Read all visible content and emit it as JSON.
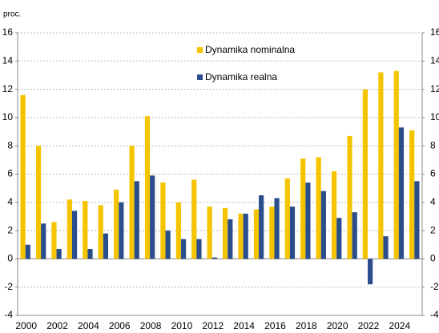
{
  "chart_data": {
    "type": "bar",
    "y_label": "proc.",
    "categories": [
      "2000",
      null,
      "2002",
      null,
      "2004",
      null,
      "2006",
      null,
      "2008",
      null,
      "2010",
      null,
      "2012",
      null,
      "2014",
      null,
      "2016",
      null,
      "2018",
      null,
      "2020",
      null,
      "2022",
      null,
      "2024",
      null
    ],
    "series": [
      {
        "name": "Dynamika nominalna",
        "color": "#f5c400",
        "values": [
          11.6,
          8.0,
          2.6,
          4.2,
          4.1,
          3.8,
          4.9,
          8.0,
          10.1,
          5.4,
          4.0,
          5.6,
          3.7,
          3.6,
          3.2,
          3.5,
          3.7,
          5.7,
          7.1,
          7.2,
          6.2,
          8.7,
          12.0,
          13.2,
          13.3,
          9.1
        ]
      },
      {
        "name": "Dynamika realna",
        "color": "#2a4e8c",
        "values": [
          1.0,
          2.5,
          0.7,
          3.4,
          0.7,
          1.8,
          4.0,
          5.5,
          5.9,
          2.0,
          1.4,
          1.4,
          0.1,
          2.8,
          3.2,
          4.5,
          4.3,
          3.7,
          5.4,
          4.8,
          2.9,
          3.3,
          -1.8,
          1.6,
          9.3,
          5.5
        ]
      }
    ],
    "ylim": [
      -4,
      16
    ],
    "yticks": [
      -4,
      -2,
      0,
      2,
      4,
      6,
      8,
      10,
      12,
      14,
      16
    ],
    "y2lim": [
      -4,
      16
    ],
    "y2ticks": [
      -4,
      -2,
      0,
      2,
      4,
      6,
      8,
      10,
      12,
      14,
      16
    ],
    "grid": true
  }
}
